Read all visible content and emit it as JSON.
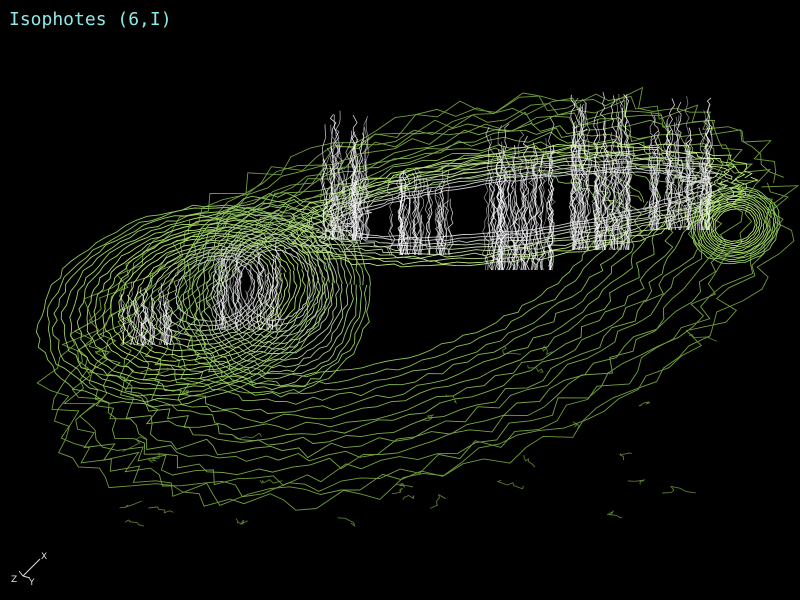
{
  "viewport": {
    "title": "Isophotes (6,I)",
    "background": "#000000",
    "title_color": "#8fe8e8"
  },
  "render": {
    "style": "isophote contour lines",
    "colors": {
      "outer": "#6f9a3a",
      "mid": "#8ec85a",
      "bright": "#b8e870",
      "inner": "#c8c8d0",
      "peak": "#ffffff"
    }
  },
  "axes": {
    "x_label": "X",
    "y_label": "Y",
    "z_label": "Z",
    "color": "#e0e0e0"
  }
}
